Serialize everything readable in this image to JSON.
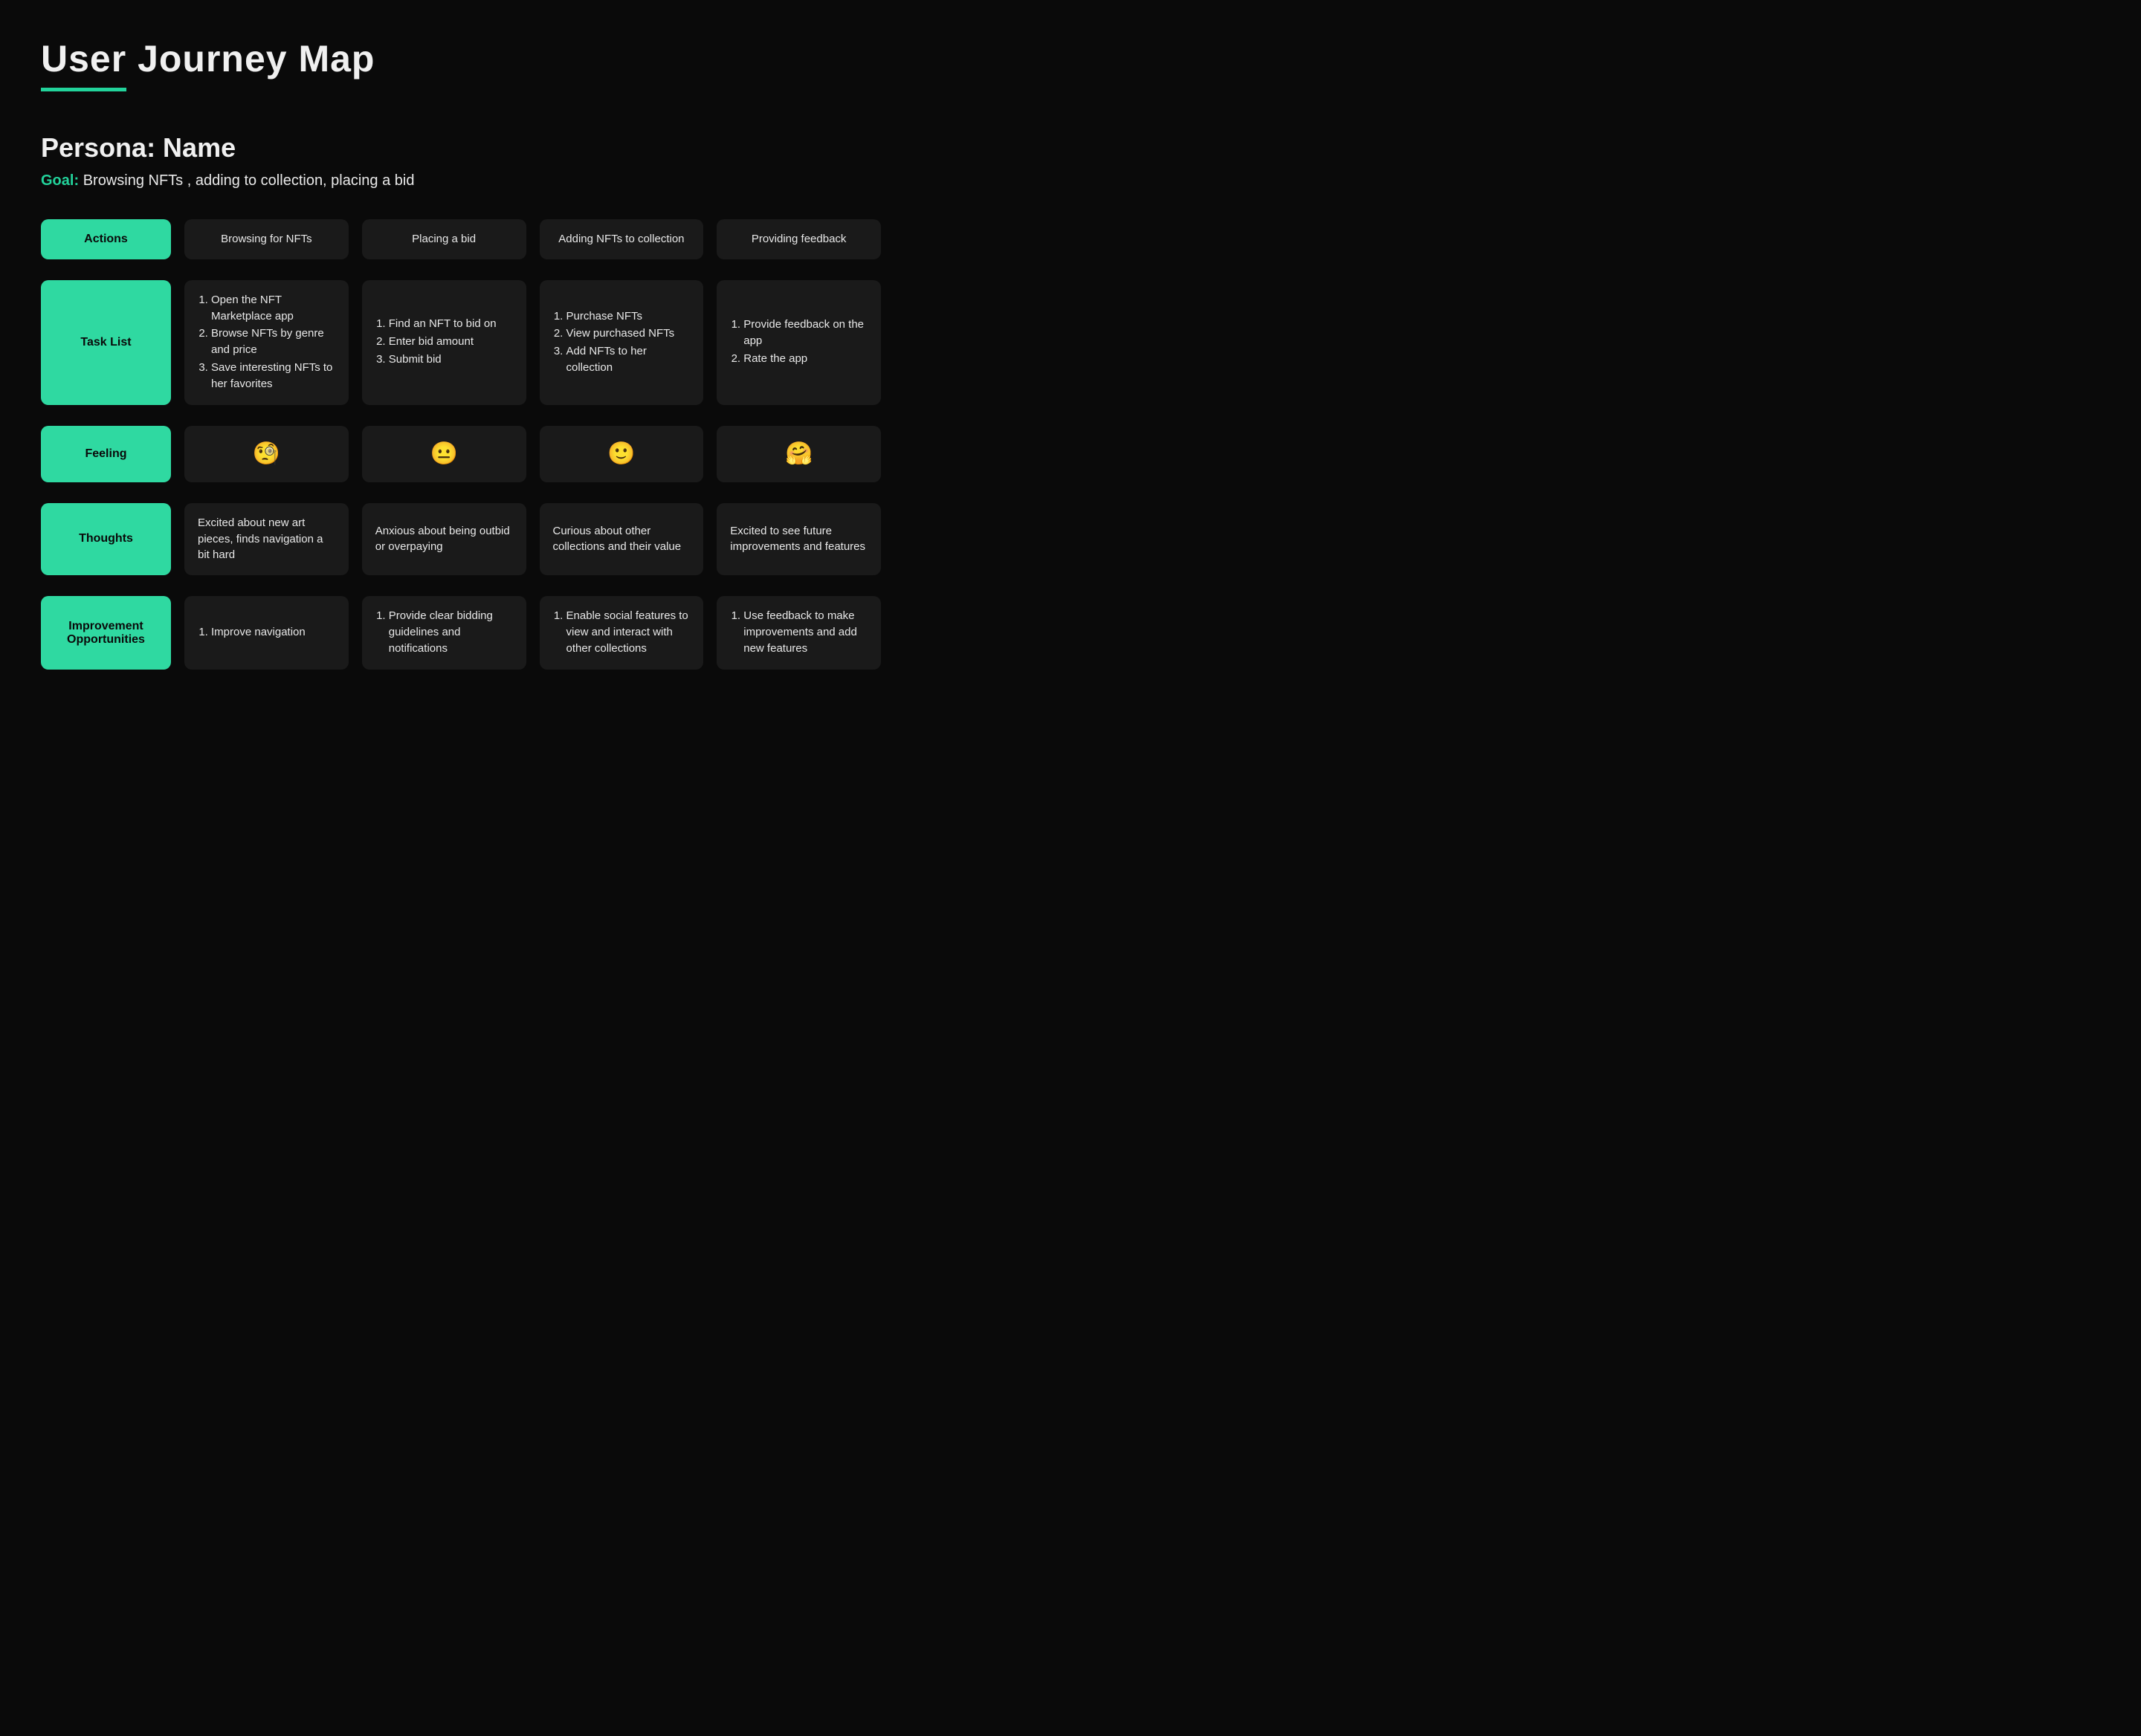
{
  "title": "User Journey Map",
  "persona_label": "Persona: Name",
  "goal_label": "Goal:",
  "goal_text": "Browsing NFTs , adding to collection, placing a bid",
  "colors": {
    "background": "#0a0a0a",
    "accent": "#22d39b",
    "label_bg": "#2fd9a1",
    "cell_bg": "#1a1a1a",
    "text": "#e8e8e8",
    "title_text": "#f0f0f0",
    "label_text": "#0a0a0a"
  },
  "row_labels": {
    "actions": "Actions",
    "tasks": "Task List",
    "feeling": "Feeling",
    "thoughts": "Thoughts",
    "improvement": "Improvement Opportunities"
  },
  "columns": [
    {
      "action": "Browsing for NFTs",
      "tasks": [
        "Open the NFT Marketplace app",
        "Browse NFTs by genre and price",
        "Save interesting NFTs to her favorites"
      ],
      "feeling": "🧐",
      "thoughts": "Excited about new art pieces, finds navigation a bit hard",
      "improvements": [
        "Improve navigation"
      ]
    },
    {
      "action": "Placing a bid",
      "tasks": [
        "Find an NFT to bid on",
        "Enter bid amount",
        "Submit bid"
      ],
      "feeling": "😐",
      "thoughts": "Anxious about being outbid or overpaying",
      "improvements": [
        "Provide clear bidding guidelines and notifications"
      ]
    },
    {
      "action": "Adding NFTs to collection",
      "tasks": [
        "Purchase NFTs",
        "View purchased NFTs",
        "Add NFTs to her collection"
      ],
      "feeling": "🙂",
      "thoughts": "Curious about other collections and their value",
      "improvements": [
        "Enable social features to view and interact with other collections"
      ]
    },
    {
      "action": "Providing feedback",
      "tasks": [
        "Provide feedback on the app",
        "Rate the app"
      ],
      "feeling": "🤗",
      "thoughts": "Excited to see future improvements and features",
      "improvements": [
        "Use feedback to make improvements and add new features"
      ]
    }
  ]
}
